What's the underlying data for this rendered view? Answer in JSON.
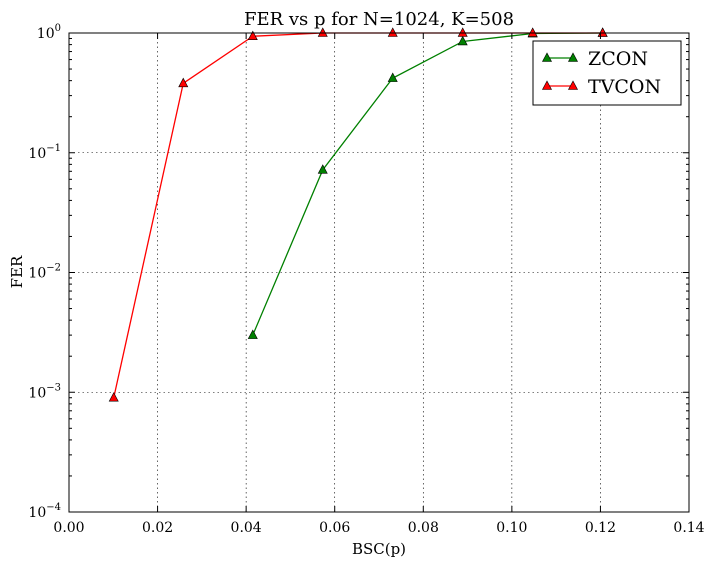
{
  "chart_data": {
    "type": "line",
    "title": "FER vs p for N=1024, K=508",
    "xlabel": "BSC(p)",
    "ylabel": "FER",
    "xlim": [
      0.0,
      0.14
    ],
    "ylim": [
      0.0001,
      1
    ],
    "yscale": "log",
    "grid": true,
    "legend_position": "top-right",
    "x_ticks": [
      "0.00",
      "0.02",
      "0.04",
      "0.06",
      "0.08",
      "0.10",
      "0.12",
      "0.14"
    ],
    "y_ticks": [
      {
        "base": "10",
        "exp": "0"
      },
      {
        "base": "10",
        "exp": "-1"
      },
      {
        "base": "10",
        "exp": "-2"
      },
      {
        "base": "10",
        "exp": "-3"
      },
      {
        "base": "10",
        "exp": "-4"
      }
    ],
    "series": [
      {
        "name": "ZCON",
        "color": "#008000",
        "marker": "triangle-up",
        "x": [
          0.0415,
          0.0573,
          0.0731,
          0.0889,
          0.1047,
          0.1205
        ],
        "y": [
          0.003,
          0.072,
          0.42,
          0.85,
          0.99,
          1.0
        ]
      },
      {
        "name": "TVCON",
        "color": "#ff0000",
        "marker": "triangle-up",
        "x": [
          0.0101,
          0.0258,
          0.0415,
          0.0573,
          0.0731,
          0.0889,
          0.1047,
          0.1205
        ],
        "y": [
          0.0009,
          0.38,
          0.94,
          1.0,
          1.0,
          1.0,
          1.0,
          1.0
        ]
      }
    ]
  }
}
